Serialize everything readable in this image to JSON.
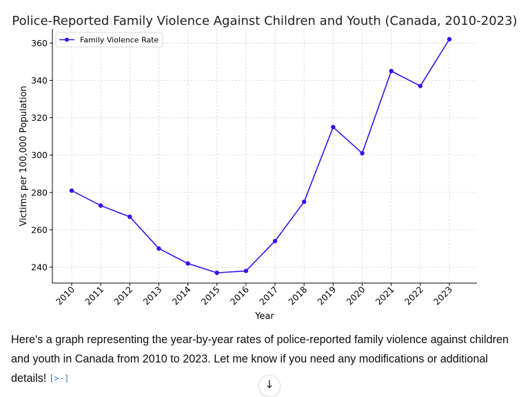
{
  "chart_data": {
    "type": "line",
    "title": "Police-Reported Family Violence Against Children and Youth (Canada, 2010-2023)",
    "xlabel": "Year",
    "ylabel": "Victims per 100,000 Population",
    "categories": [
      "2010",
      "2011",
      "2012",
      "2013",
      "2014",
      "2015",
      "2016",
      "2017",
      "2018",
      "2019",
      "2020",
      "2021",
      "2022",
      "2023"
    ],
    "series": [
      {
        "name": "Family Violence Rate",
        "color": "#3b0ef0",
        "values": [
          281,
          273,
          267,
          250,
          242,
          237,
          238,
          254,
          275,
          315,
          301,
          345,
          337,
          362
        ]
      }
    ],
    "yticks": [
      240,
      260,
      280,
      300,
      320,
      340,
      360
    ],
    "ylim": [
      231.5,
      367.5
    ],
    "grid": true,
    "legend": "top-left",
    "marker": "circle"
  },
  "message": {
    "text": "Here's a graph representing the year-by-year rates of police-reported family violence against children and youth in Canada from 2010 to 2023. Let me know if you need any modifications or additional details!",
    "cite_icon": "[>-]"
  },
  "controls": {
    "scroll_down_icon": "↓"
  }
}
